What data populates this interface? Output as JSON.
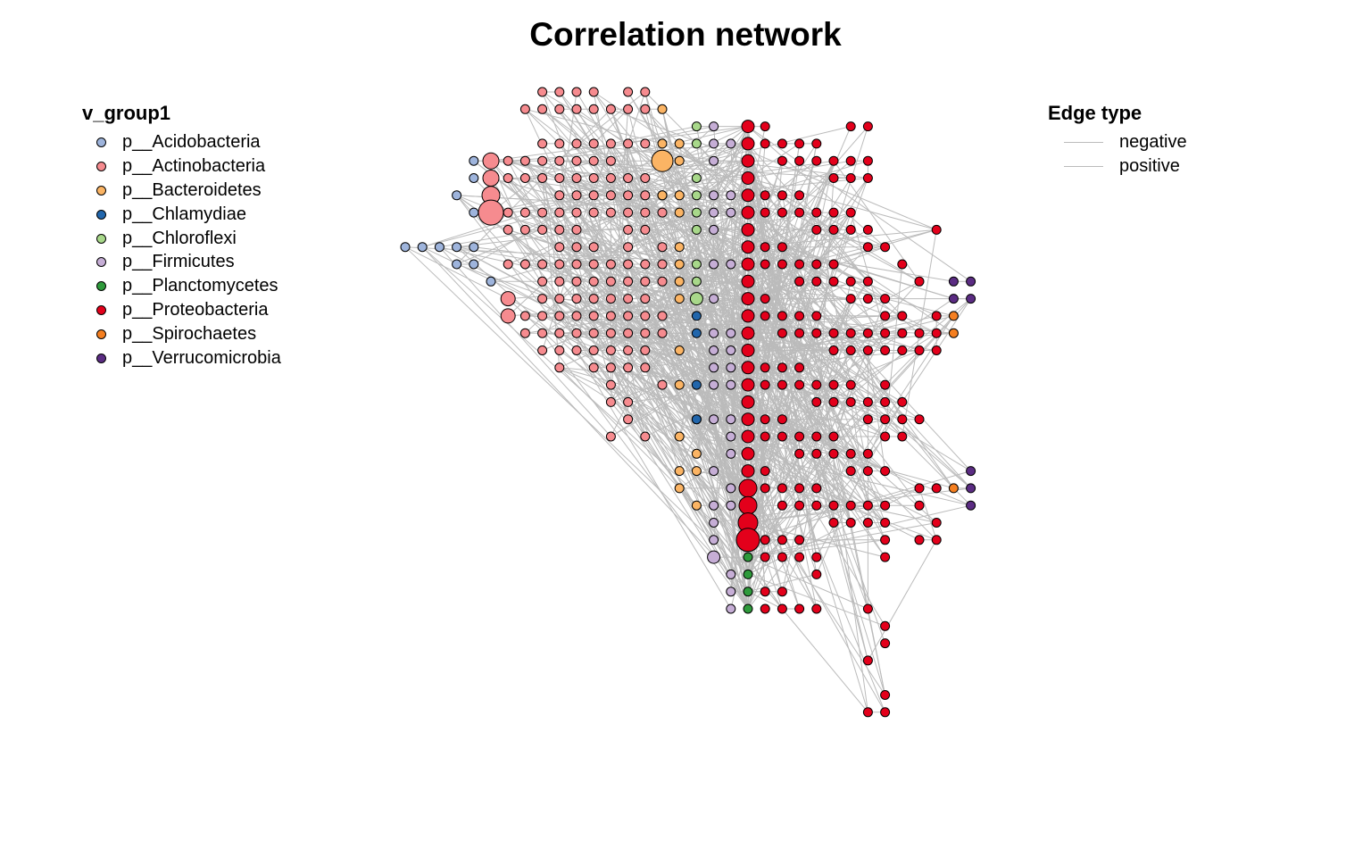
{
  "title": "Correlation network",
  "node_legend": {
    "title": "v_group1",
    "items": [
      {
        "label": "p__Acidobacteria",
        "color": "#9eb4dc"
      },
      {
        "label": "p__Actinobacteria",
        "color": "#f68b8f"
      },
      {
        "label": "p__Bacteroidetes",
        "color": "#fbb464"
      },
      {
        "label": "p__Chlamydiae",
        "color": "#2166ac"
      },
      {
        "label": "p__Chloroflexi",
        "color": "#a8d88a"
      },
      {
        "label": "p__Firmicutes",
        "color": "#c6aed6"
      },
      {
        "label": "p__Planctomycetes",
        "color": "#2e9a3b"
      },
      {
        "label": "p__Proteobacteria",
        "color": "#e3001b"
      },
      {
        "label": "p__Spirochaetes",
        "color": "#f57f20"
      },
      {
        "label": "p__Verrucomicrobia",
        "color": "#5b2c83"
      }
    ]
  },
  "edge_legend": {
    "title": "Edge type",
    "items": [
      {
        "label": "negative",
        "color": "#bbbbbb"
      },
      {
        "label": "positive",
        "color": "#bbbbbb"
      }
    ]
  },
  "edge_color": "#bbbbbb",
  "node_outline_color": "#000000"
}
